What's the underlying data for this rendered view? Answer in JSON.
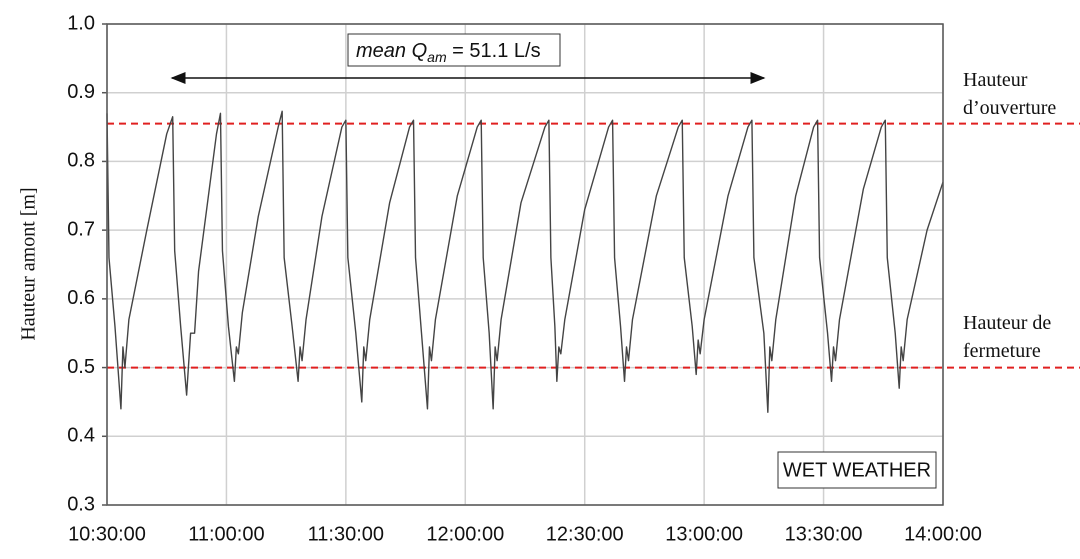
{
  "chart_data": {
    "type": "line",
    "ylabel": "Hauteur amont [m]",
    "mean_label": [
      "mean Q",
      "am",
      " = 51.1 L/s"
    ],
    "box_label": "WET WEATHER",
    "xlim": [
      "10:30:00",
      "14:00:00"
    ],
    "xticks": [
      "10:30:00",
      "11:00:00",
      "11:30:00",
      "12:00:00",
      "12:30:00",
      "13:00:00",
      "13:30:00",
      "14:00:00"
    ],
    "ylim": [
      0.3,
      1.0
    ],
    "yticks": [
      0.3,
      0.4,
      0.5,
      0.6,
      0.7,
      0.8,
      0.9,
      {
        "value": 1.0,
        "label": "1.0"
      }
    ],
    "grid": true,
    "hlines": [
      {
        "value": 0.855,
        "color": "#e02020",
        "label": [
          "Hauteur",
          "d’ouverture"
        ]
      },
      {
        "value": 0.5,
        "color": "#e02020",
        "label": [
          "Hauteur de",
          "fermeture"
        ]
      }
    ],
    "x": [
      "10:30:00",
      "10:30:30",
      "10:32:00",
      "10:33:30",
      "10:34:00",
      "10:34:30",
      "10:35:30",
      "10:40:00",
      "10:45:00",
      "10:46:30",
      "10:47:00",
      "10:48:30",
      "10:50:00",
      "10:51:00",
      "10:52:00",
      "10:53:00",
      "10:57:30",
      "10:58:30",
      "10:59:00",
      "11:00:30",
      "11:02:00",
      "11:02:30",
      "11:03:00",
      "11:04:00",
      "11:08:00",
      "11:13:00",
      "11:14:00",
      "11:14:30",
      "11:16:30",
      "11:18:00",
      "11:18:30",
      "11:19:00",
      "11:20:00",
      "11:24:00",
      "11:29:00",
      "11:30:00",
      "11:30:30",
      "11:32:30",
      "11:34:00",
      "11:34:30",
      "11:35:00",
      "11:36:00",
      "11:41:00",
      "11:46:00",
      "11:47:00",
      "11:47:30",
      "11:49:00",
      "11:50:30",
      "11:51:00",
      "11:51:30",
      "11:52:30",
      "11:58:00",
      "12:03:00",
      "12:04:00",
      "12:04:30",
      "12:06:00",
      "12:07:00",
      "12:07:30",
      "12:08:00",
      "12:09:00",
      "12:14:00",
      "12:20:00",
      "12:21:00",
      "12:21:30",
      "12:22:30",
      "12:23:00",
      "12:23:30",
      "12:24:00",
      "12:25:00",
      "12:30:00",
      "12:36:00",
      "12:37:00",
      "12:37:30",
      "12:39:00",
      "12:40:00",
      "12:40:30",
      "12:41:00",
      "12:42:00",
      "12:48:00",
      "12:53:30",
      "12:54:30",
      "12:55:00",
      "12:57:00",
      "12:58:00",
      "12:58:30",
      "12:59:00",
      "13:00:00",
      "13:06:00",
      "13:11:00",
      "13:12:00",
      "13:12:30",
      "13:15:00",
      "13:16:00",
      "13:16:30",
      "13:17:00",
      "13:18:00",
      "13:23:00",
      "13:27:30",
      "13:28:30",
      "13:29:00",
      "13:31:00",
      "13:32:00",
      "13:32:30",
      "13:33:00",
      "13:34:00",
      "13:40:00",
      "13:44:30",
      "13:45:30",
      "13:46:00",
      "13:48:00",
      "13:49:00",
      "13:49:30",
      "13:50:00",
      "13:51:00",
      "13:56:00",
      "14:00:00"
    ],
    "series": [
      {
        "color": "#444444",
        "values": [
          0.87,
          0.66,
          0.56,
          0.44,
          0.53,
          0.5,
          0.57,
          0.7,
          0.84,
          0.865,
          0.67,
          0.56,
          0.46,
          0.55,
          0.55,
          0.64,
          0.84,
          0.87,
          0.67,
          0.56,
          0.48,
          0.53,
          0.52,
          0.58,
          0.72,
          0.85,
          0.873,
          0.66,
          0.56,
          0.48,
          0.53,
          0.51,
          0.57,
          0.72,
          0.85,
          0.86,
          0.66,
          0.55,
          0.45,
          0.53,
          0.51,
          0.57,
          0.74,
          0.85,
          0.86,
          0.66,
          0.55,
          0.44,
          0.53,
          0.51,
          0.57,
          0.75,
          0.85,
          0.86,
          0.66,
          0.55,
          0.44,
          0.53,
          0.51,
          0.57,
          0.74,
          0.85,
          0.86,
          0.66,
          0.56,
          0.48,
          0.53,
          0.52,
          0.57,
          0.73,
          0.85,
          0.86,
          0.66,
          0.56,
          0.48,
          0.53,
          0.51,
          0.57,
          0.75,
          0.85,
          0.86,
          0.66,
          0.56,
          0.49,
          0.54,
          0.52,
          0.57,
          0.75,
          0.85,
          0.86,
          0.66,
          0.55,
          0.435,
          0.53,
          0.51,
          0.57,
          0.75,
          0.85,
          0.86,
          0.66,
          0.55,
          0.48,
          0.53,
          0.51,
          0.57,
          0.76,
          0.85,
          0.86,
          0.66,
          0.55,
          0.47,
          0.53,
          0.51,
          0.57,
          0.7,
          0.77
        ]
      }
    ]
  }
}
